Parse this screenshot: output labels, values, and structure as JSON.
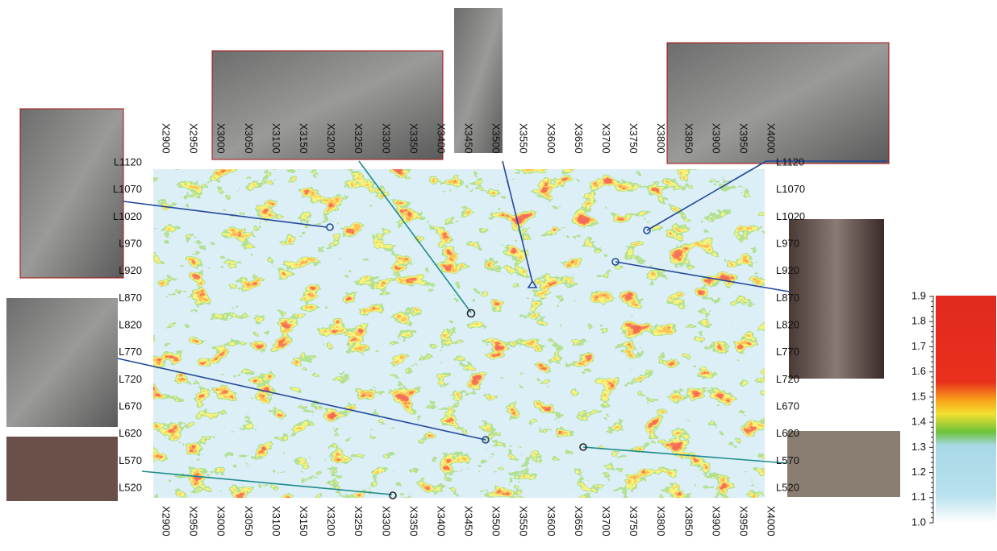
{
  "x_labels": [
    "X2900",
    "X2950",
    "X3000",
    "X3050",
    "X3100",
    "X3150",
    "X3200",
    "X3250",
    "X3300",
    "X3350",
    "X3400",
    "X3450",
    "X3500",
    "X3550",
    "X3600",
    "X3650",
    "X3700",
    "X3750",
    "X3800",
    "X3850",
    "X3900",
    "X3950",
    "X4000"
  ],
  "line_labels": [
    "L1120",
    "L1070",
    "L1020",
    "L970",
    "L920",
    "L870",
    "L820",
    "L770",
    "L720",
    "L670",
    "L620",
    "L570",
    "L520"
  ],
  "colorbar": {
    "ticks": [
      1.9,
      1.8,
      1.7,
      1.6,
      1.5,
      1.4,
      1.3,
      1.2,
      1.1,
      {
        "value": 1,
        "label": "1.0"
      }
    ]
  }
}
